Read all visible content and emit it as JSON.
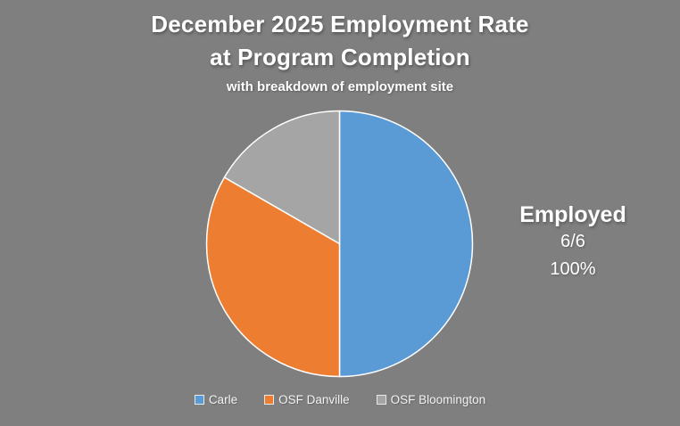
{
  "title": {
    "line1": "December 2025 Employment Rate",
    "line2": "at Program Completion",
    "subtitle": "with breakdown of employment site"
  },
  "annotation": {
    "heading": "Employed",
    "fraction": "6/6",
    "percent": "100%"
  },
  "legend": {
    "items": [
      {
        "label": "Carle",
        "color": "#5B9BD5"
      },
      {
        "label": "OSF Danville",
        "color": "#ED7D31"
      },
      {
        "label": "OSF Bloomington",
        "color": "#A5A5A5"
      }
    ]
  },
  "chart_data": {
    "type": "pie",
    "title": "December 2025 Employment Rate at Program Completion",
    "subtitle": "with breakdown of employment site",
    "categories": [
      "Carle",
      "OSF Danville",
      "OSF Bloomington"
    ],
    "values": [
      3,
      2,
      1
    ],
    "total": 6,
    "percentages": [
      50,
      33.3,
      16.7
    ],
    "colors": [
      "#5B9BD5",
      "#ED7D31",
      "#A5A5A5"
    ],
    "slice_border_color": "#FFFFFF",
    "start_angle_deg": 0,
    "direction": "clockwise",
    "legend_position": "bottom",
    "background_color": "#7F7F7F",
    "annotation": "Employed 6/6 100%"
  }
}
